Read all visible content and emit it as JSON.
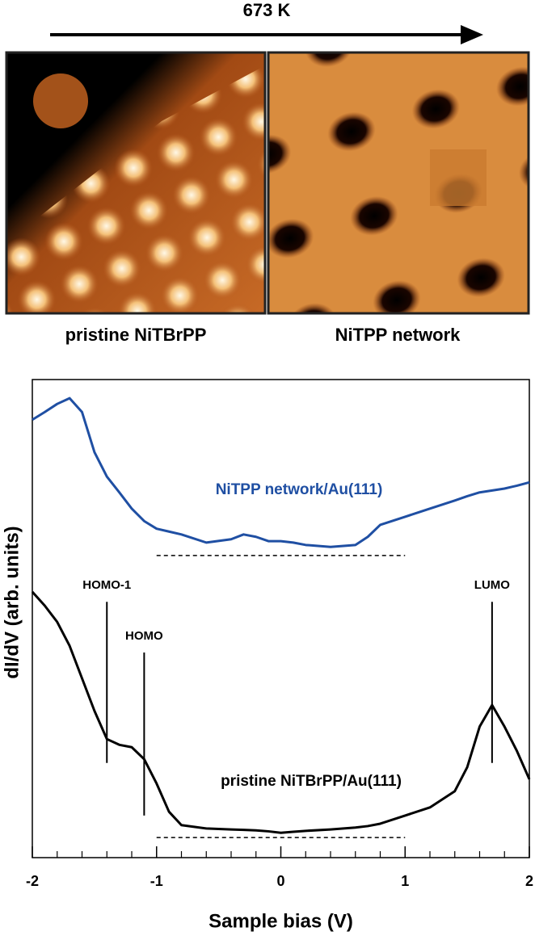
{
  "figure": {
    "arrow_label": "673 K",
    "images": [
      {
        "label": "pristine NiTBrPP"
      },
      {
        "label": "NiTPP network"
      }
    ]
  },
  "chart_data": {
    "type": "line",
    "xlabel": "Sample bias (V)",
    "ylabel": "dI/dV (arb. units)",
    "xlim": [
      -2,
      2
    ],
    "ylim": [
      0,
      100
    ],
    "xticks": [
      -2,
      -1,
      0,
      1,
      2
    ],
    "xminor_ticks": [
      -1.8,
      -1.6,
      -1.4,
      -1.2,
      -0.8,
      -0.6,
      -0.4,
      -0.2,
      0.2,
      0.4,
      0.6,
      0.8,
      1.2,
      1.4,
      1.6,
      1.8
    ],
    "x": [
      -2,
      -1.9,
      -1.8,
      -1.7,
      -1.6,
      -1.5,
      -1.4,
      -1.3,
      -1.2,
      -1.1,
      -1.0,
      -0.9,
      -0.8,
      -0.6,
      -0.4,
      -0.3,
      -0.2,
      -0.1,
      0,
      0.1,
      0.2,
      0.4,
      0.6,
      0.7,
      0.8,
      1.0,
      1.2,
      1.4,
      1.5,
      1.6,
      1.7,
      1.8,
      1.9,
      2.0
    ],
    "series": [
      {
        "name": "NiTPP network/Au(111)",
        "color": "#1f4fa3",
        "values": [
          91.6,
          93.2,
          94.9,
          96.1,
          93.2,
          84.8,
          79.7,
          76.4,
          73.0,
          70.4,
          68.8,
          68.2,
          67.6,
          65.9,
          66.6,
          67.6,
          67.1,
          66.2,
          66.2,
          65.9,
          65.4,
          65.0,
          65.4,
          67.1,
          69.6,
          71.3,
          73.0,
          74.7,
          75.6,
          76.4,
          76.8,
          77.2,
          77.8,
          78.5
        ]
      },
      {
        "name": "pristine NiTBrPP/Au(111)",
        "color": "#000000",
        "values": [
          55.6,
          52.7,
          49.3,
          44.3,
          37.5,
          30.7,
          24.8,
          23.6,
          23.1,
          20.6,
          15.5,
          9.6,
          6.8,
          6.1,
          5.9,
          5.8,
          5.7,
          5.5,
          5.2,
          5.4,
          5.6,
          5.9,
          6.3,
          6.6,
          7.1,
          8.8,
          10.5,
          13.9,
          18.9,
          27.4,
          31.9,
          27.4,
          22.3,
          16.4
        ]
      }
    ],
    "baselines": [
      {
        "x": [
          -1,
          1
        ],
        "y": 63.2
      },
      {
        "x": [
          -1,
          1
        ],
        "y": 4.2
      }
    ],
    "markers": [
      {
        "label": "HOMO-1",
        "x": -1.4,
        "y": [
          19.8,
          53.5
        ]
      },
      {
        "label": "HOMO",
        "x": -1.1,
        "y": [
          8.8,
          42.9
        ]
      },
      {
        "label": "LUMO",
        "x": 1.7,
        "y": [
          19.8,
          53.5
        ]
      }
    ]
  }
}
